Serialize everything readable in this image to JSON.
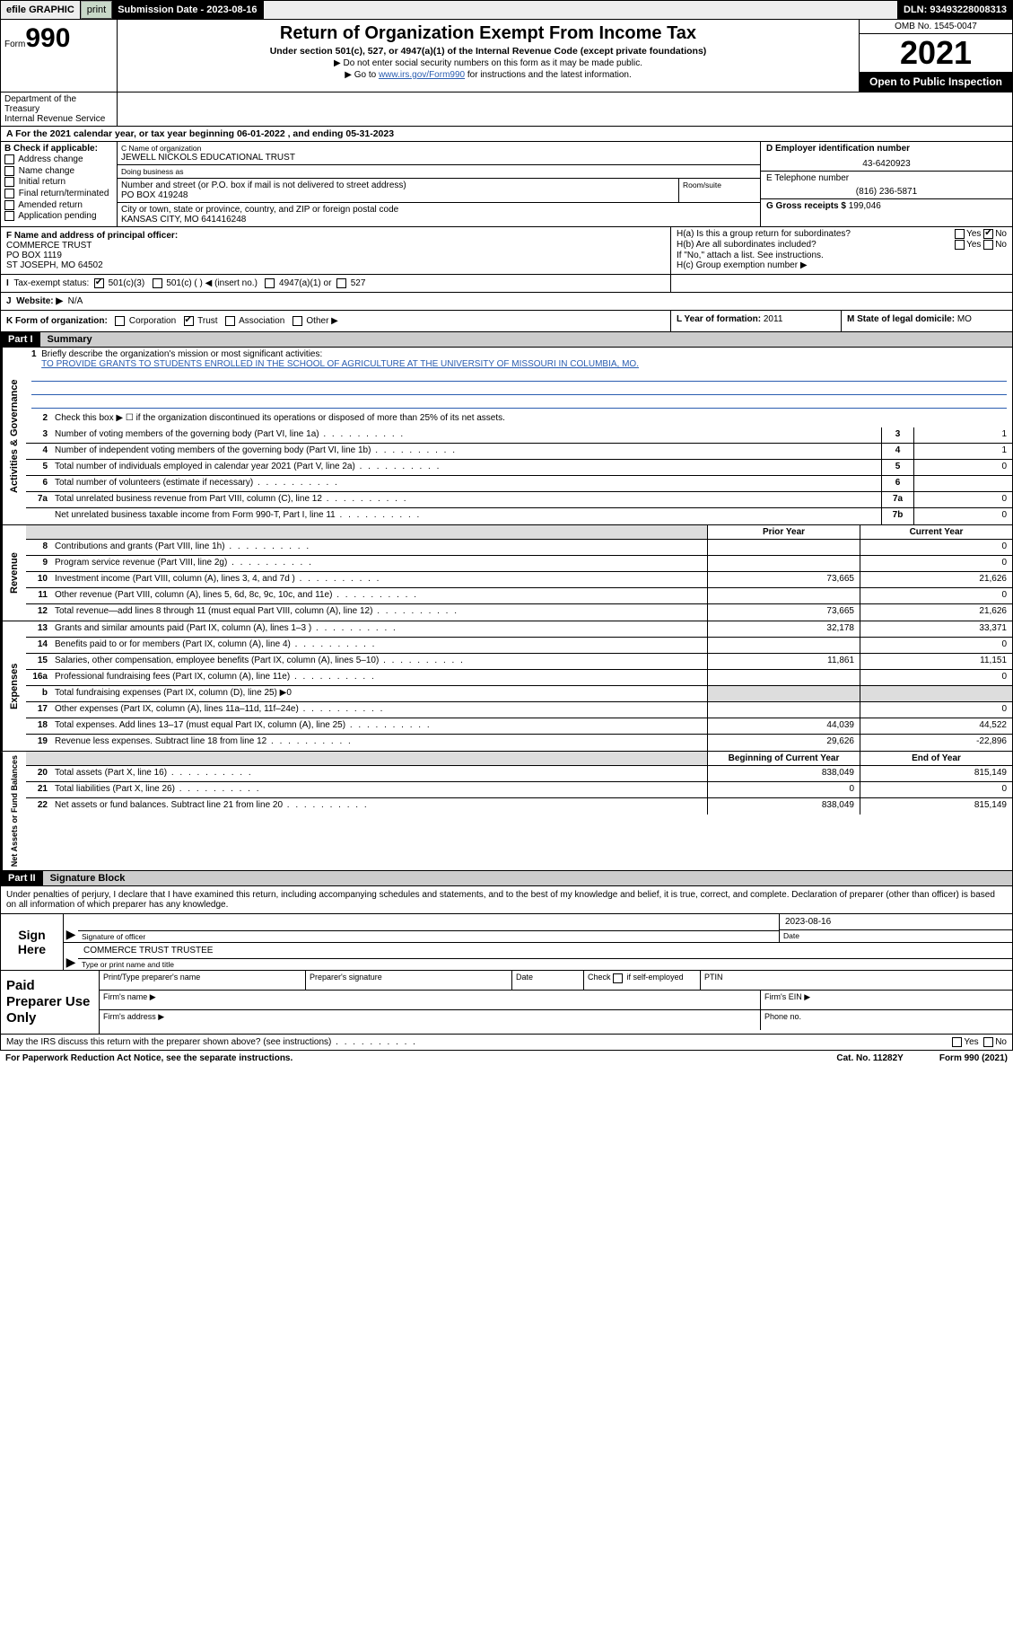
{
  "topbar": {
    "efile": "efile GRAPHIC",
    "print": "print",
    "sub_label": "Submission Date - 2023-08-16",
    "dln": "DLN: 93493228008313"
  },
  "header": {
    "form_word": "Form",
    "form_num": "990",
    "title": "Return of Organization Exempt From Income Tax",
    "sub": "Under section 501(c), 527, or 4947(a)(1) of the Internal Revenue Code (except private foundations)",
    "l1": "Do not enter social security numbers on this form as it may be made public.",
    "l2_pre": "Go to ",
    "l2_link": "www.irs.gov/Form990",
    "l2_post": " for instructions and the latest information.",
    "omb": "OMB No. 1545-0047",
    "year": "2021",
    "openpub": "Open to Public Inspection",
    "dept": "Department of the Treasury\nInternal Revenue Service"
  },
  "line_a": "For the 2021 calendar year, or tax year beginning 06-01-2022   , and ending 05-31-2023",
  "box_b": {
    "hdr": "B Check if applicable:",
    "opts": [
      "Address change",
      "Name change",
      "Initial return",
      "Final return/terminated",
      "Amended return",
      "Application pending"
    ]
  },
  "box_c": {
    "name_lbl": "C Name of organization",
    "name": "JEWELL NICKOLS EDUCATIONAL TRUST",
    "dba_lbl": "Doing business as",
    "dba": "",
    "street_lbl": "Number and street (or P.O. box if mail is not delivered to street address)",
    "room_lbl": "Room/suite",
    "street": "PO BOX 419248",
    "city_lbl": "City or town, state or province, country, and ZIP or foreign postal code",
    "city": "KANSAS CITY, MO  641416248"
  },
  "box_d": {
    "lbl": "D Employer identification number",
    "val": "43-6420923"
  },
  "box_e": {
    "lbl": "E Telephone number",
    "val": "(816) 236-5871"
  },
  "box_g": {
    "lbl": "G Gross receipts $",
    "val": "199,046"
  },
  "box_f": {
    "lbl": "F Name and address of principal officer:",
    "l1": "COMMERCE TRUST",
    "l2": "PO BOX 1119",
    "l3": "ST JOSEPH, MO  64502"
  },
  "box_h": {
    "ha_lbl": "H(a)  Is this a group return for subordinates?",
    "hb_lbl": "H(b)  Are all subordinates included?",
    "hb_note": "If \"No,\" attach a list. See instructions.",
    "hc_lbl": "H(c)  Group exemption number ▶",
    "yes": "Yes",
    "no": "No"
  },
  "row_i": {
    "lbl": "Tax-exempt status:",
    "o1": "501(c)(3)",
    "o2": "501(c) (  ) ◀ (insert no.)",
    "o3": "4947(a)(1) or",
    "o4": "527"
  },
  "row_j": {
    "lbl": "Website: ▶",
    "val": "N/A"
  },
  "row_k": {
    "lbl": "K Form of organization:",
    "opts": [
      "Corporation",
      "Trust",
      "Association",
      "Other ▶"
    ],
    "checked": 1
  },
  "row_l": {
    "lbl": "L Year of formation:",
    "val": "2011"
  },
  "row_m": {
    "lbl": "M State of legal domicile:",
    "val": "MO"
  },
  "parts": {
    "p1": "Part I",
    "p1_title": "Summary",
    "p2": "Part II",
    "p2_title": "Signature Block"
  },
  "sections": {
    "gov": "Activities & Governance",
    "rev": "Revenue",
    "exp": "Expenses",
    "net": "Net Assets or Fund Balances"
  },
  "mission": {
    "lbl": "Briefly describe the organization's mission or most significant activities:",
    "text": "TO PROVIDE GRANTS TO STUDENTS ENROLLED IN THE SCHOOL OF AGRICULTURE AT THE UNIVERSITY OF MISSOURI IN COLUMBIA, MO."
  },
  "gov_lines": [
    {
      "n": "2",
      "d": "Check this box ▶ ☐  if the organization discontinued its operations or disposed of more than 25% of its net assets."
    },
    {
      "n": "3",
      "d": "Number of voting members of the governing body (Part VI, line 1a)",
      "box": "3",
      "v": "1"
    },
    {
      "n": "4",
      "d": "Number of independent voting members of the governing body (Part VI, line 1b)",
      "box": "4",
      "v": "1"
    },
    {
      "n": "5",
      "d": "Total number of individuals employed in calendar year 2021 (Part V, line 2a)",
      "box": "5",
      "v": "0"
    },
    {
      "n": "6",
      "d": "Total number of volunteers (estimate if necessary)",
      "box": "6",
      "v": ""
    },
    {
      "n": "7a",
      "d": "Total unrelated business revenue from Part VIII, column (C), line 12",
      "box": "7a",
      "v": "0"
    },
    {
      "n": "",
      "d": "Net unrelated business taxable income from Form 990-T, Part I, line 11",
      "box": "7b",
      "v": "0"
    }
  ],
  "two_col_hdr": {
    "c1": "Prior Year",
    "c2": "Current Year"
  },
  "rev_lines": [
    {
      "n": "8",
      "d": "Contributions and grants (Part VIII, line 1h)",
      "p": "",
      "c": "0"
    },
    {
      "n": "9",
      "d": "Program service revenue (Part VIII, line 2g)",
      "p": "",
      "c": "0"
    },
    {
      "n": "10",
      "d": "Investment income (Part VIII, column (A), lines 3, 4, and 7d )",
      "p": "73,665",
      "c": "21,626"
    },
    {
      "n": "11",
      "d": "Other revenue (Part VIII, column (A), lines 5, 6d, 8c, 9c, 10c, and 11e)",
      "p": "",
      "c": "0"
    },
    {
      "n": "12",
      "d": "Total revenue—add lines 8 through 11 (must equal Part VIII, column (A), line 12)",
      "p": "73,665",
      "c": "21,626"
    }
  ],
  "exp_lines": [
    {
      "n": "13",
      "d": "Grants and similar amounts paid (Part IX, column (A), lines 1–3 )",
      "p": "32,178",
      "c": "33,371"
    },
    {
      "n": "14",
      "d": "Benefits paid to or for members (Part IX, column (A), line 4)",
      "p": "",
      "c": "0"
    },
    {
      "n": "15",
      "d": "Salaries, other compensation, employee benefits (Part IX, column (A), lines 5–10)",
      "p": "11,861",
      "c": "11,151"
    },
    {
      "n": "16a",
      "d": "Professional fundraising fees (Part IX, column (A), line 11e)",
      "p": "",
      "c": "0"
    },
    {
      "n": "b",
      "d": "Total fundraising expenses (Part IX, column (D), line 25) ▶0",
      "p": null,
      "c": null,
      "shade": true
    },
    {
      "n": "17",
      "d": "Other expenses (Part IX, column (A), lines 11a–11d, 11f–24e)",
      "p": "",
      "c": "0"
    },
    {
      "n": "18",
      "d": "Total expenses. Add lines 13–17 (must equal Part IX, column (A), line 25)",
      "p": "44,039",
      "c": "44,522"
    },
    {
      "n": "19",
      "d": "Revenue less expenses. Subtract line 18 from line 12",
      "p": "29,626",
      "c": "-22,896"
    }
  ],
  "net_hdr": {
    "c1": "Beginning of Current Year",
    "c2": "End of Year"
  },
  "net_lines": [
    {
      "n": "20",
      "d": "Total assets (Part X, line 16)",
      "p": "838,049",
      "c": "815,149"
    },
    {
      "n": "21",
      "d": "Total liabilities (Part X, line 26)",
      "p": "0",
      "c": "0"
    },
    {
      "n": "22",
      "d": "Net assets or fund balances. Subtract line 21 from line 20",
      "p": "838,049",
      "c": "815,149"
    }
  ],
  "sig_intro": "Under penalties of perjury, I declare that I have examined this return, including accompanying schedules and statements, and to the best of my knowledge and belief, it is true, correct, and complete. Declaration of preparer (other than officer) is based on all information of which preparer has any knowledge.",
  "sign_here": "Sign Here",
  "sig": {
    "sig_lbl": "Signature of officer",
    "date_lbl": "Date",
    "date": "2023-08-16",
    "name": "COMMERCE TRUST TRUSTEE",
    "name_lbl": "Type or print name and title"
  },
  "paid": {
    "title": "Paid Preparer Use Only",
    "h1": "Print/Type preparer's name",
    "h2": "Preparer's signature",
    "h3": "Date",
    "h4_pre": "Check",
    "h4_post": "if self-employed",
    "h5": "PTIN",
    "firm_name": "Firm's name    ▶",
    "firm_ein": "Firm's EIN ▶",
    "firm_addr": "Firm's address ▶",
    "phone": "Phone no."
  },
  "irs_q": "May the IRS discuss this return with the preparer shown above? (see instructions)",
  "footer": {
    "l": "For Paperwork Reduction Act Notice, see the separate instructions.",
    "c": "Cat. No. 11282Y",
    "r": "Form 990 (2021)"
  }
}
